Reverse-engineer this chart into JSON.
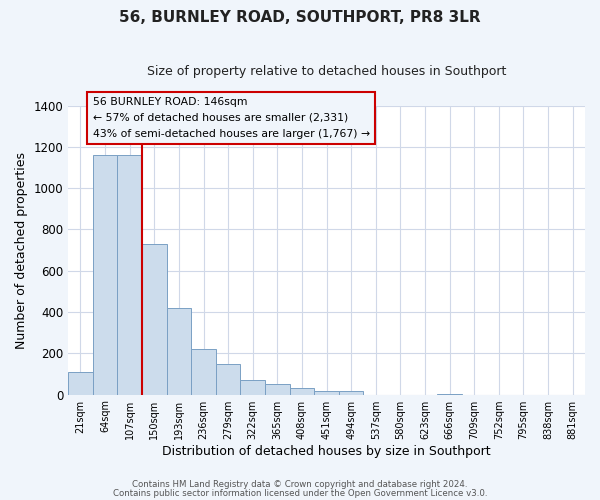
{
  "title": "56, BURNLEY ROAD, SOUTHPORT, PR8 3LR",
  "subtitle": "Size of property relative to detached houses in Southport",
  "xlabel": "Distribution of detached houses by size in Southport",
  "ylabel": "Number of detached properties",
  "bin_labels": [
    "21sqm",
    "64sqm",
    "107sqm",
    "150sqm",
    "193sqm",
    "236sqm",
    "279sqm",
    "322sqm",
    "365sqm",
    "408sqm",
    "451sqm",
    "494sqm",
    "537sqm",
    "580sqm",
    "623sqm",
    "666sqm",
    "709sqm",
    "752sqm",
    "795sqm",
    "838sqm",
    "881sqm"
  ],
  "bar_heights": [
    107,
    1160,
    1160,
    730,
    420,
    220,
    148,
    72,
    50,
    30,
    17,
    15,
    0,
    0,
    0,
    5,
    0,
    0,
    0,
    0,
    0
  ],
  "bar_color": "#ccdcec",
  "bar_edge_color": "#7aA0C4",
  "vline_x_index": 3,
  "vline_color": "#cc0000",
  "annotation_line1": "56 BURNLEY ROAD: 146sqm",
  "annotation_line2": "← 57% of detached houses are smaller (2,331)",
  "annotation_line3": "43% of semi-detached houses are larger (1,767) →",
  "ylim": [
    0,
    1400
  ],
  "yticks": [
    0,
    200,
    400,
    600,
    800,
    1000,
    1200,
    1400
  ],
  "footer_line1": "Contains HM Land Registry data © Crown copyright and database right 2024.",
  "footer_line2": "Contains public sector information licensed under the Open Government Licence v3.0.",
  "plot_bg_color": "#ffffff",
  "fig_bg_color": "#f0f5fb",
  "grid_color": "#d0d8e8",
  "title_color": "#222222",
  "annotation_bg": "#f0f5fb",
  "vline_x_data": 2.5
}
